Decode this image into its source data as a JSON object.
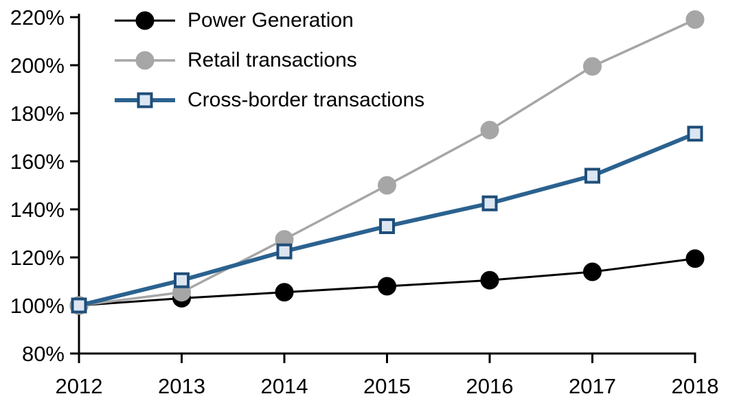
{
  "chart_data": {
    "type": "line",
    "title": "",
    "xlabel": "",
    "ylabel": "",
    "x_labels": [
      "2012",
      "2013",
      "2014",
      "2015",
      "2016",
      "2017",
      "2018"
    ],
    "y_axis": {
      "min": 80,
      "max": 220,
      "step": 20,
      "suffix": "%"
    },
    "y_tick_labels": [
      "80%",
      "100%",
      "120%",
      "140%",
      "160%",
      "180%",
      "200%",
      "220%"
    ],
    "grid": false,
    "legend_position": "top-left",
    "series": [
      {
        "name": "Power Generation",
        "slug": "power-generation",
        "marker": "circle",
        "line_color": "#000000",
        "marker_fill": "#000000",
        "marker_border": "#000000",
        "line_width": 3,
        "values": [
          100,
          103,
          105.5,
          108,
          110.5,
          114,
          119.5
        ]
      },
      {
        "name": "Retail transactions",
        "slug": "retail-transactions",
        "marker": "circle",
        "line_color": "#a6a6a6",
        "marker_fill": "#a6a6a6",
        "marker_border": "#a6a6a6",
        "line_width": 3.5,
        "values": [
          100,
          105.5,
          127.5,
          150,
          173,
          199.5,
          219
        ]
      },
      {
        "name": "Cross-border transactions",
        "slug": "cross-border-transactions",
        "marker": "square",
        "line_color": "#2b628f",
        "marker_fill": "#dce6f2",
        "marker_border": "#1f4e79",
        "line_width": 6,
        "values": [
          100,
          110.5,
          122.5,
          133,
          142.5,
          154,
          171.5
        ]
      }
    ],
    "axis_color": "#000000"
  }
}
